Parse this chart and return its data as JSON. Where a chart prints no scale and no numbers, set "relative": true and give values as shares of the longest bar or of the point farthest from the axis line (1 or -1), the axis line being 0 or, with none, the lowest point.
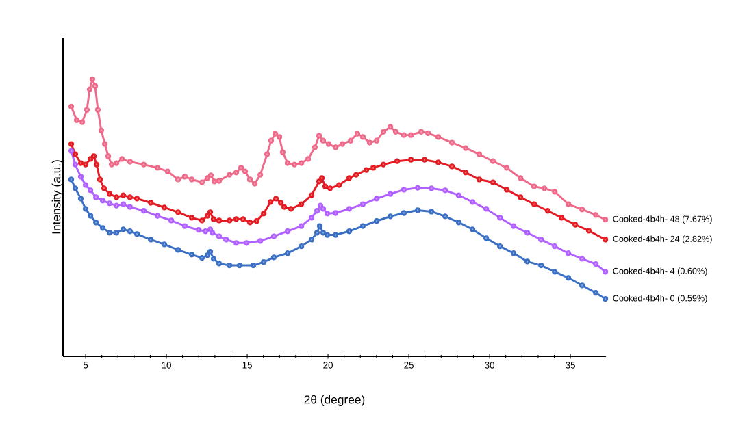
{
  "chart_data": {
    "type": "line",
    "relative": true,
    "xlabel": "2θ (degree)",
    "ylabel": "Intensity (a.u.)",
    "xlim": [
      3.6,
      37.2
    ],
    "xticks": [
      5,
      10,
      15,
      20,
      25,
      30,
      35
    ],
    "grid": false,
    "legend": false,
    "marker": "circle",
    "line_style": "solid",
    "series": [
      {
        "name": "Cooked-4b4h- 48 (7.67%)",
        "color": "#ee6a8a",
        "x": [
          4.11,
          4.45,
          4.79,
          5.08,
          5.25,
          5.42,
          5.59,
          5.76,
          5.97,
          6.19,
          6.4,
          6.61,
          6.91,
          7.25,
          7.75,
          8.6,
          9.45,
          10.08,
          10.72,
          11.14,
          11.57,
          12.2,
          12.54,
          12.75,
          12.97,
          13.26,
          13.9,
          14.32,
          14.62,
          14.87,
          15.17,
          15.47,
          15.81,
          16.23,
          16.48,
          16.74,
          16.99,
          17.2,
          17.5,
          17.92,
          18.35,
          18.77,
          19.19,
          19.45,
          19.7,
          20.04,
          20.47,
          20.89,
          21.4,
          21.82,
          22.16,
          22.58,
          23.01,
          23.43,
          23.86,
          24.19,
          24.7,
          25.13,
          25.76,
          26.19,
          26.82,
          27.67,
          28.52,
          29.36,
          30.21,
          31.06,
          31.91,
          32.75,
          33.39,
          34.03,
          34.87,
          35.72,
          36.57,
          37.16
        ],
        "values": [
          0.901,
          0.852,
          0.845,
          0.889,
          0.963,
          1.0,
          0.975,
          0.889,
          0.815,
          0.766,
          0.722,
          0.692,
          0.697,
          0.712,
          0.702,
          0.692,
          0.68,
          0.667,
          0.638,
          0.648,
          0.638,
          0.628,
          0.643,
          0.653,
          0.631,
          0.633,
          0.655,
          0.663,
          0.68,
          0.667,
          0.638,
          0.623,
          0.655,
          0.729,
          0.778,
          0.803,
          0.791,
          0.736,
          0.697,
          0.692,
          0.697,
          0.712,
          0.754,
          0.796,
          0.778,
          0.766,
          0.754,
          0.766,
          0.778,
          0.803,
          0.791,
          0.771,
          0.778,
          0.81,
          0.828,
          0.81,
          0.798,
          0.798,
          0.81,
          0.805,
          0.791,
          0.771,
          0.751,
          0.729,
          0.704,
          0.68,
          0.643,
          0.613,
          0.606,
          0.594,
          0.549,
          0.53,
          0.51,
          0.493
        ]
      },
      {
        "name": "Cooked-4b4h- 24 (2.82%)",
        "color": "#e31b23",
        "x": [
          4.11,
          4.36,
          4.7,
          5.0,
          5.3,
          5.51,
          5.68,
          5.89,
          6.14,
          6.48,
          6.91,
          7.33,
          7.75,
          8.18,
          9.03,
          9.87,
          10.72,
          11.57,
          12.2,
          12.54,
          12.71,
          12.92,
          13.26,
          13.9,
          14.32,
          14.75,
          15.17,
          15.59,
          16.02,
          16.44,
          16.78,
          17.08,
          17.29,
          17.71,
          18.35,
          18.98,
          19.45,
          19.62,
          19.83,
          20.13,
          20.68,
          21.31,
          21.74,
          22.37,
          22.8,
          23.43,
          24.28,
          25.13,
          25.97,
          26.82,
          27.67,
          28.52,
          29.36,
          30.21,
          31.06,
          31.91,
          32.75,
          33.6,
          34.45,
          35.3,
          36.14,
          37.16
        ],
        "values": [
          0.766,
          0.729,
          0.697,
          0.692,
          0.712,
          0.722,
          0.692,
          0.638,
          0.606,
          0.586,
          0.574,
          0.581,
          0.574,
          0.569,
          0.554,
          0.537,
          0.52,
          0.5,
          0.49,
          0.507,
          0.52,
          0.495,
          0.49,
          0.49,
          0.495,
          0.495,
          0.483,
          0.488,
          0.515,
          0.557,
          0.569,
          0.554,
          0.539,
          0.532,
          0.549,
          0.581,
          0.631,
          0.643,
          0.613,
          0.606,
          0.618,
          0.643,
          0.655,
          0.672,
          0.68,
          0.692,
          0.704,
          0.709,
          0.709,
          0.7,
          0.685,
          0.663,
          0.638,
          0.628,
          0.601,
          0.574,
          0.549,
          0.525,
          0.5,
          0.475,
          0.453,
          0.421
        ]
      },
      {
        "name": "Cooked-4b4h- 4 (0.60%)",
        "color": "#b061ff",
        "x": [
          4.11,
          4.36,
          4.7,
          5.0,
          5.3,
          5.64,
          6.06,
          6.48,
          6.91,
          7.33,
          7.75,
          8.6,
          9.45,
          10.3,
          11.14,
          11.99,
          12.42,
          12.71,
          12.84,
          13.26,
          13.69,
          14.32,
          14.96,
          15.81,
          16.65,
          17.5,
          18.35,
          18.98,
          19.32,
          19.53,
          19.7,
          19.96,
          20.47,
          21.31,
          22.16,
          23.01,
          23.86,
          24.7,
          25.55,
          26.4,
          27.25,
          28.09,
          28.94,
          29.79,
          30.64,
          31.48,
          32.33,
          33.18,
          34.03,
          34.87,
          35.72,
          36.57,
          37.16
        ],
        "values": [
          0.741,
          0.692,
          0.648,
          0.618,
          0.599,
          0.574,
          0.562,
          0.552,
          0.544,
          0.549,
          0.539,
          0.525,
          0.507,
          0.49,
          0.47,
          0.456,
          0.451,
          0.458,
          0.446,
          0.433,
          0.421,
          0.409,
          0.409,
          0.416,
          0.433,
          0.451,
          0.47,
          0.5,
          0.525,
          0.544,
          0.532,
          0.515,
          0.517,
          0.532,
          0.549,
          0.569,
          0.586,
          0.601,
          0.608,
          0.606,
          0.599,
          0.581,
          0.557,
          0.532,
          0.5,
          0.47,
          0.446,
          0.421,
          0.397,
          0.372,
          0.352,
          0.333,
          0.305
        ]
      },
      {
        "name": "Cooked-4b4h- 0 (0.59%)",
        "color": "#3a6fc4",
        "x": [
          4.11,
          4.36,
          4.7,
          5.0,
          5.3,
          5.64,
          6.06,
          6.48,
          6.91,
          7.33,
          7.75,
          8.18,
          9.03,
          9.87,
          10.72,
          11.57,
          12.2,
          12.54,
          12.71,
          12.92,
          13.26,
          13.9,
          14.53,
          15.38,
          16.02,
          16.65,
          17.5,
          18.35,
          18.98,
          19.32,
          19.49,
          19.7,
          19.96,
          20.47,
          21.31,
          22.16,
          23.01,
          23.86,
          24.7,
          25.55,
          26.4,
          27.25,
          28.09,
          28.94,
          29.79,
          30.64,
          31.48,
          32.33,
          33.18,
          34.03,
          34.87,
          35.72,
          36.57,
          37.16
        ],
        "values": [
          0.638,
          0.606,
          0.569,
          0.532,
          0.507,
          0.483,
          0.463,
          0.446,
          0.446,
          0.458,
          0.451,
          0.441,
          0.421,
          0.404,
          0.384,
          0.367,
          0.355,
          0.365,
          0.377,
          0.352,
          0.335,
          0.328,
          0.328,
          0.328,
          0.34,
          0.357,
          0.372,
          0.397,
          0.421,
          0.446,
          0.47,
          0.446,
          0.438,
          0.438,
          0.451,
          0.47,
          0.488,
          0.505,
          0.517,
          0.527,
          0.522,
          0.505,
          0.483,
          0.458,
          0.426,
          0.397,
          0.372,
          0.342,
          0.328,
          0.305,
          0.283,
          0.256,
          0.229,
          0.207
        ]
      }
    ]
  }
}
